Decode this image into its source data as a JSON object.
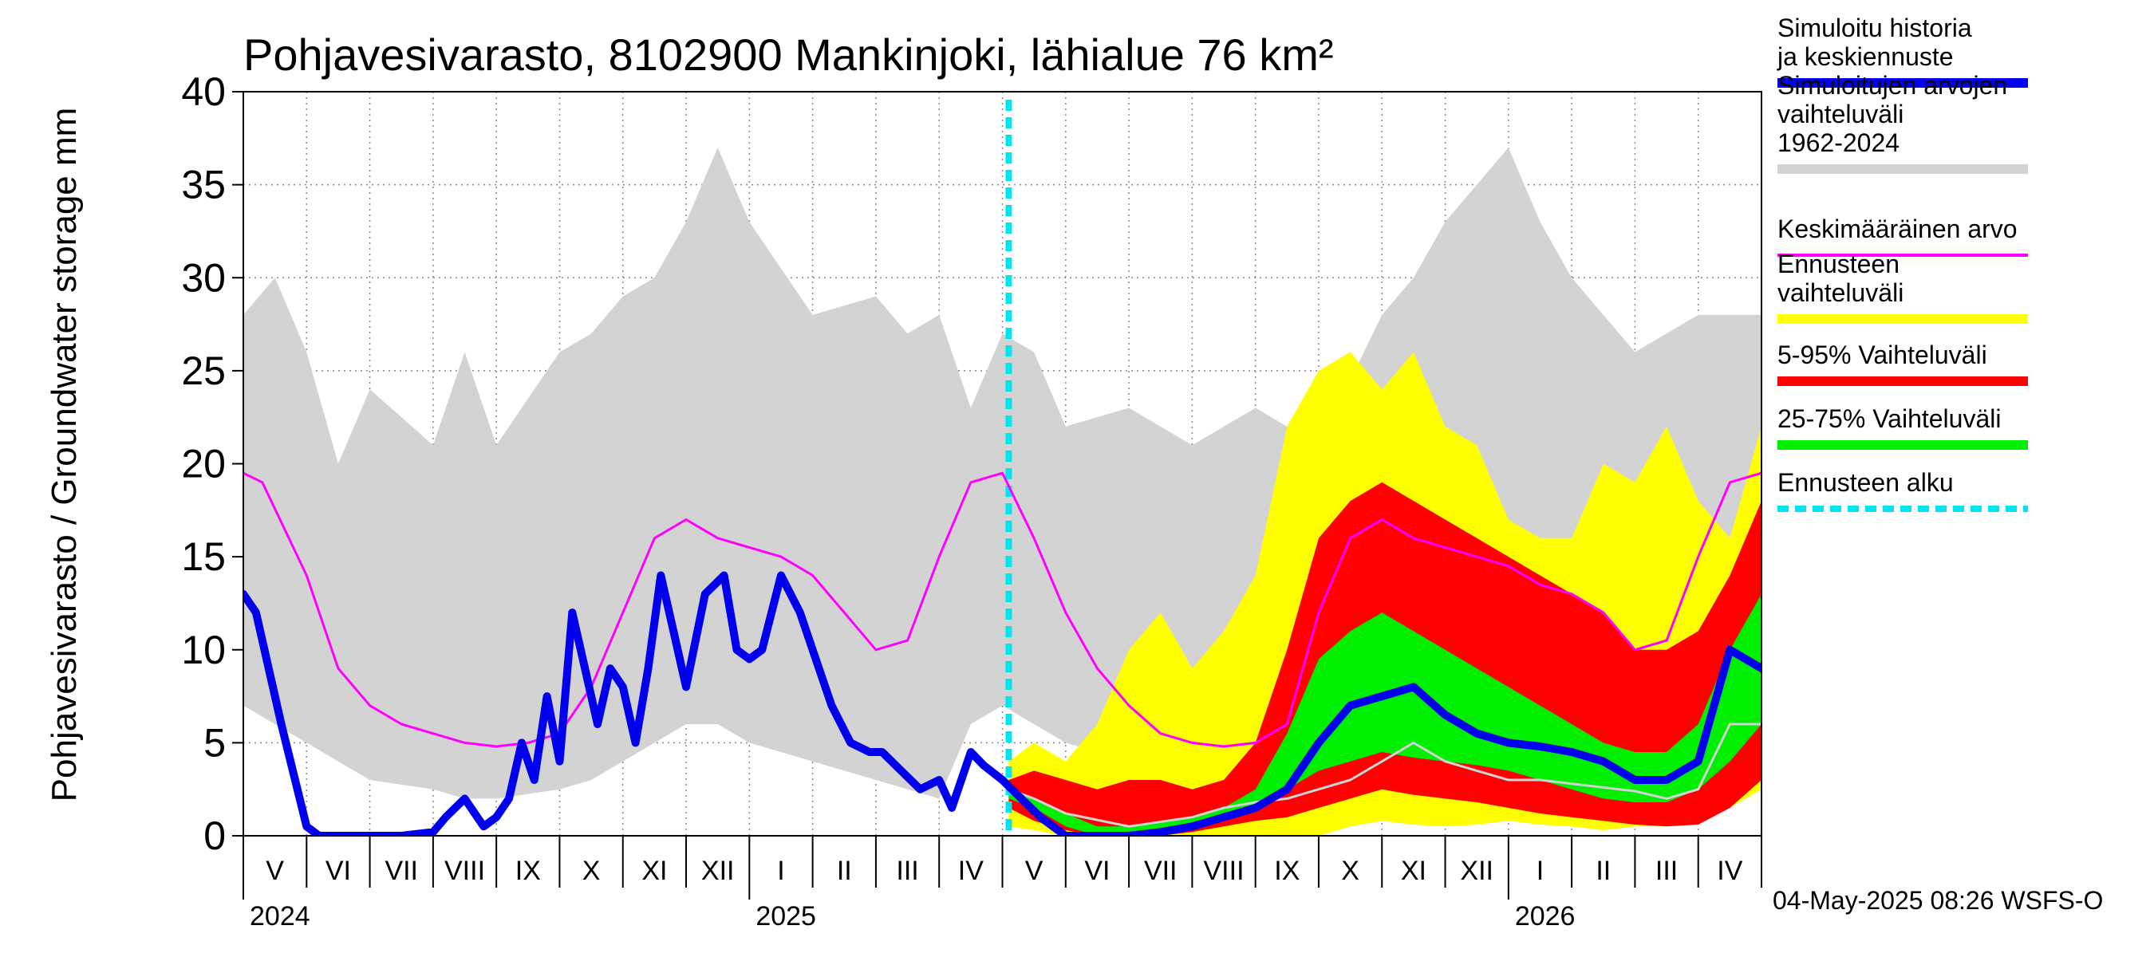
{
  "chart_data": {
    "type": "area",
    "title": "Pohjavesivarasto, 8102900 Mankinjoki, lähialue 76 km²",
    "ylabel": "Pohjavesivarasto / Groundwater storage   mm",
    "ylim": [
      0,
      40
    ],
    "yticks": [
      "0",
      "5",
      "10",
      "15",
      "20",
      "25",
      "30",
      "35",
      "40"
    ],
    "x_range_months": [
      0,
      24
    ],
    "months": [
      "V",
      "VI",
      "VII",
      "VIII",
      "IX",
      "X",
      "XI",
      "XII",
      "I",
      "II",
      "III",
      "IV",
      "V",
      "VI",
      "VII",
      "VIII",
      "IX",
      "X",
      "XI",
      "XII",
      "I",
      "II",
      "III",
      "IV"
    ],
    "years": [
      {
        "label": "2024",
        "month_index": 0
      },
      {
        "label": "2025",
        "month_index": 8
      },
      {
        "label": "2026",
        "month_index": 20
      }
    ],
    "forecast_start_month": 12.1,
    "series": [
      {
        "name": "Simuloitujen arvojen vaihteluväli 1962-2024",
        "kind": "band",
        "color": "#d3d3d3",
        "x": [
          0,
          0.5,
          1.0,
          1.5,
          2.0,
          3.0,
          3.5,
          4.0,
          5.0,
          5.5,
          6.0,
          6.5,
          7.0,
          7.5,
          8.0,
          9.0,
          10.0,
          10.5,
          11.0,
          11.5,
          12.0,
          12.5,
          13.0,
          14.0,
          15.0,
          16.0,
          17.0,
          18.0,
          18.5,
          19.0,
          19.5,
          20.0,
          20.5,
          21.0,
          22.0,
          23.0,
          24.0
        ],
        "upper": [
          28,
          30,
          26,
          20,
          24,
          21,
          26,
          21,
          26,
          27,
          29,
          30,
          33,
          37,
          33,
          28,
          29,
          27,
          28,
          23,
          27,
          26,
          22,
          23,
          21,
          23,
          21,
          28,
          30,
          33,
          35,
          37,
          33,
          30,
          26,
          28,
          28
        ],
        "lower": [
          7,
          6,
          5,
          4,
          3,
          2.5,
          2,
          2,
          2.5,
          3,
          4,
          5,
          6,
          6,
          5,
          4,
          3,
          2.5,
          2,
          6,
          7,
          6,
          5,
          4,
          3,
          2.5,
          2,
          3,
          4,
          5,
          6,
          5,
          4,
          3,
          2.5,
          3,
          7
        ]
      },
      {
        "name": "Ennusteen vaihteluväli",
        "kind": "band",
        "color": "#ffff00",
        "x": [
          12.1,
          12.5,
          13,
          13.5,
          14,
          14.5,
          15,
          15.5,
          16,
          16.5,
          17,
          17.5,
          18,
          18.5,
          19,
          19.5,
          20,
          20.5,
          21,
          21.5,
          22,
          22.5,
          23,
          23.5,
          24
        ],
        "upper": [
          4,
          5,
          4,
          6,
          10,
          12,
          9,
          11,
          14,
          22,
          25,
          26,
          24,
          26,
          22,
          21,
          17,
          16,
          16,
          20,
          19,
          22,
          18,
          16,
          22
        ],
        "lower": [
          0.5,
          0.3,
          0,
          0,
          0,
          0,
          0,
          0,
          0,
          0,
          0,
          0.5,
          0.8,
          0.6,
          0.5,
          0.6,
          0.8,
          0.6,
          0.5,
          0.3,
          0.5,
          0.5,
          0.8,
          1.5,
          2.5
        ]
      },
      {
        "name": "5-95% Vaihteluväli",
        "kind": "band",
        "color": "#ff0000",
        "x": [
          12.1,
          12.5,
          13,
          13.5,
          14,
          14.5,
          15,
          15.5,
          16,
          16.5,
          17,
          17.5,
          18,
          18.5,
          19,
          19.5,
          20,
          20.5,
          21,
          21.5,
          22,
          22.5,
          23,
          23.5,
          24
        ],
        "upper": [
          3,
          3.5,
          3,
          2.5,
          3,
          3,
          2.5,
          3,
          5,
          10,
          16,
          18,
          19,
          18,
          17,
          16,
          15,
          14,
          13,
          12,
          10,
          10,
          11,
          14,
          18
        ],
        "lower": [
          1.5,
          0.8,
          0.3,
          0,
          0,
          0,
          0.2,
          0.5,
          0.8,
          1,
          1.5,
          2,
          2.5,
          2.2,
          2,
          1.8,
          1.5,
          1.2,
          1,
          0.8,
          0.6,
          0.5,
          0.6,
          1.5,
          3
        ]
      },
      {
        "name": "25-75% Vaihteluväli",
        "kind": "band",
        "color": "#00ee00",
        "x": [
          12.1,
          12.5,
          13,
          13.5,
          14,
          14.5,
          15,
          15.5,
          16,
          16.5,
          17,
          17.5,
          18,
          18.5,
          19,
          19.5,
          20,
          20.5,
          21,
          21.5,
          22,
          22.5,
          23,
          23.5,
          24
        ],
        "upper": [
          2.5,
          2,
          1.2,
          0.5,
          0.5,
          0.7,
          1,
          1.5,
          2.5,
          5.5,
          9.5,
          11,
          12,
          11,
          10,
          9,
          8,
          7,
          6,
          5,
          4.5,
          4.5,
          6,
          10,
          13
        ],
        "lower": [
          2,
          1.5,
          0.5,
          0,
          0,
          0,
          0.3,
          0.8,
          1.5,
          2.5,
          3.5,
          4,
          4.5,
          4.2,
          4,
          3.8,
          3.5,
          3,
          2.5,
          2,
          1.8,
          1.8,
          2.5,
          4,
          6
        ]
      },
      {
        "name": "Mediaani",
        "kind": "line",
        "color": "#d3d3d3",
        "width": 3,
        "x": [
          12.1,
          12.5,
          13,
          14,
          15,
          15.5,
          16,
          16.5,
          17,
          17.5,
          18,
          18.5,
          19,
          19.5,
          20,
          20.5,
          21,
          21.5,
          22,
          22.5,
          23,
          23.5,
          24
        ],
        "values": [
          2.5,
          2,
          1.2,
          0.5,
          1,
          1.5,
          1.8,
          2,
          2.5,
          3,
          4,
          5,
          4,
          3.5,
          3,
          3,
          2.8,
          2.6,
          2.4,
          2,
          2.5,
          6,
          6
        ]
      },
      {
        "name": "Keskimääräinen arvo",
        "kind": "line",
        "color": "#ff00ff",
        "width": 3,
        "x": [
          0,
          0.3,
          1,
          1.5,
          2,
          2.5,
          3,
          3.5,
          4,
          4.5,
          5,
          5.5,
          6,
          6.5,
          7,
          7.5,
          8,
          8.5,
          9,
          9.5,
          10,
          10.5,
          11,
          11.5,
          12,
          12.5,
          13,
          13.5,
          14,
          14.5,
          15,
          15.5,
          16,
          16.5,
          17,
          17.5,
          18,
          18.5,
          19,
          19.5,
          20,
          20.5,
          21,
          21.5,
          22,
          22.5,
          23,
          23.5,
          24
        ],
        "values": [
          19.5,
          19,
          14,
          9,
          7,
          6,
          5.5,
          5,
          4.8,
          5,
          5.5,
          8,
          12,
          16,
          17,
          16,
          15.5,
          15,
          14,
          12,
          10,
          10.5,
          15,
          19,
          19.5,
          16,
          12,
          9,
          7,
          5.5,
          5,
          4.8,
          5,
          6,
          12,
          16,
          17,
          16,
          15.5,
          15,
          14.5,
          13.5,
          13,
          12,
          10,
          10.5,
          15,
          19,
          19.5
        ]
      },
      {
        "name": "Simuloitu historia ja keskiennuste",
        "kind": "line",
        "color": "#0000ee",
        "width": 10,
        "x": [
          0,
          0.2,
          0.6,
          1.0,
          1.2,
          1.5,
          2.0,
          2.5,
          3.0,
          3.2,
          3.5,
          3.8,
          4.0,
          4.2,
          4.4,
          4.6,
          4.8,
          5.0,
          5.2,
          5.4,
          5.6,
          5.8,
          6.0,
          6.2,
          6.4,
          6.6,
          6.8,
          7.0,
          7.3,
          7.6,
          7.8,
          8.0,
          8.2,
          8.5,
          8.8,
          9.0,
          9.3,
          9.6,
          9.9,
          10.1,
          10.4,
          10.7,
          11.0,
          11.2,
          11.5,
          11.7,
          12.0,
          12.3,
          12.6,
          13.0,
          13.5,
          14.0,
          14.5,
          15.0,
          15.5,
          16.0,
          16.5,
          17.0,
          17.5,
          18.0,
          18.5,
          19.0,
          19.5,
          20.0,
          20.5,
          21.0,
          21.5,
          22.0,
          22.5,
          23.0,
          23.5,
          24.0
        ],
        "values": [
          13,
          12,
          6,
          0.5,
          0,
          0,
          0,
          0,
          0.2,
          1,
          2,
          0.5,
          1,
          2,
          5,
          3,
          7.5,
          4,
          12,
          9,
          6,
          9,
          8,
          5,
          9,
          14,
          11,
          8,
          13,
          14,
          10,
          9.5,
          10,
          14,
          12,
          10,
          7,
          5,
          4.5,
          4.5,
          3.5,
          2.5,
          3,
          1.5,
          4.5,
          3.8,
          3,
          2,
          1,
          0,
          0,
          0,
          0.2,
          0.5,
          1,
          1.5,
          2.5,
          5,
          7,
          7.5,
          8,
          6.5,
          5.5,
          5,
          4.8,
          4.5,
          4,
          3,
          3,
          4,
          10,
          9
        ]
      }
    ],
    "legend": [
      {
        "label": "Simuloitu historia ja keskiennuste",
        "color": "#0000ee",
        "style": "thick"
      },
      {
        "label": "Simuloitujen arvojen vaihteluväli 1962-2024",
        "color": "#d3d3d3",
        "style": "thick"
      },
      {
        "label": "Keskimääräinen arvo",
        "color": "#ff00ff",
        "style": "thin"
      },
      {
        "label": "Ennusteen vaihteluväli",
        "color": "#ffff00",
        "style": "thick"
      },
      {
        "label": "5-95% Vaihteluväli",
        "color": "#ff0000",
        "style": "thick"
      },
      {
        "label": "25-75% Vaihteluväli",
        "color": "#00ee00",
        "style": "thick"
      },
      {
        "label": "Ennusteen alku",
        "color": "#00e5ee",
        "style": "dashed"
      }
    ],
    "footer": "04-May-2025 08:26 WSFS-O"
  }
}
